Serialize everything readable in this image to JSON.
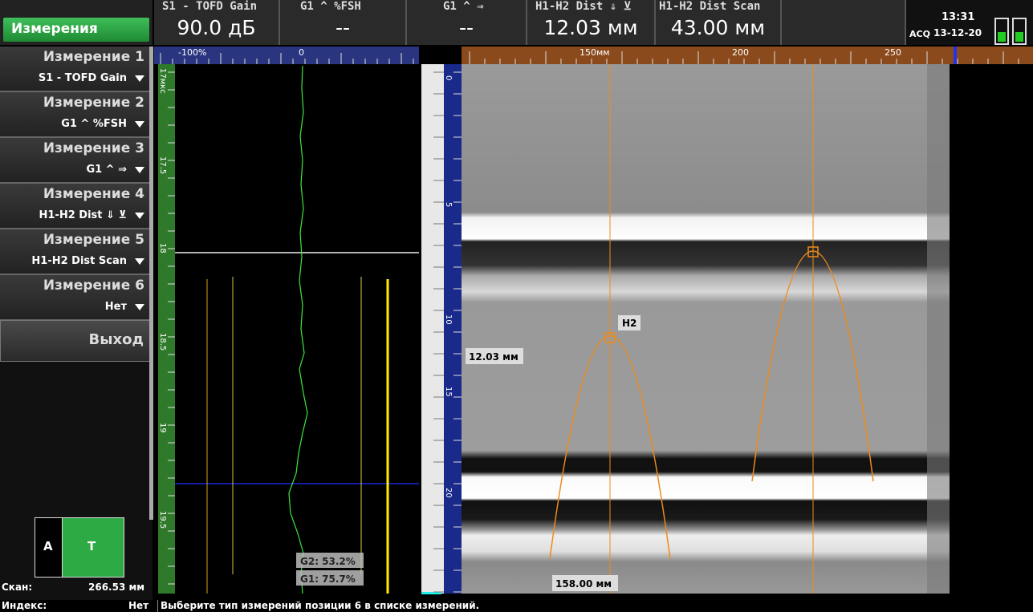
{
  "header": {
    "menu_button": "Измерения",
    "fields": [
      {
        "label": "S1 - TOFD Gain",
        "value": "90.0 дБ"
      },
      {
        "label": "G1 ^ %FSH",
        "value": "--"
      },
      {
        "label": "G1 ^ ⇒",
        "value": "--"
      },
      {
        "label": "H1-H2 Dist ⇓ ⊻",
        "value": "12.03 мм"
      },
      {
        "label": "H1-H2 Dist Scan",
        "value": "43.00 мм"
      }
    ],
    "acq": "ACQ",
    "time": "13:31",
    "date": "13-12-20"
  },
  "menu": {
    "items": [
      {
        "title": "Измерение 1",
        "selection": "S1 - TOFD Gain"
      },
      {
        "title": "Измерение 2",
        "selection": "G1 ^ %FSH"
      },
      {
        "title": "Измерение 3",
        "selection": "G1 ^ ⇒"
      },
      {
        "title": "Измерение 4",
        "selection": "H1-H2 Dist ⇓ ⊻"
      },
      {
        "title": "Измерение 5",
        "selection": "H1-H2 Dist Scan"
      },
      {
        "title": "Измерение 6",
        "selection": "Нет"
      }
    ],
    "exit": "Выход"
  },
  "probe": {
    "a": "A",
    "t": "T"
  },
  "scan": {
    "label": "Скан:",
    "value": "266.53 мм"
  },
  "status": {
    "index_label": "Индекс:",
    "index_value": "Нет",
    "message": "Выберите тип измерений позиции 6 в списке измерений."
  },
  "a_scan": {
    "top_ruler": [
      "-100%",
      "0"
    ],
    "left_ruler": [
      "17мкс",
      "17.5",
      "18",
      "18.5",
      "19",
      "19.5"
    ],
    "gates": [
      "G2: 53.2%",
      "G1: 75.7%"
    ]
  },
  "b_scan": {
    "top_ruler": [
      "150мм",
      "200",
      "250"
    ],
    "left_ruler": [
      "0",
      "5",
      "10",
      "15",
      "20"
    ],
    "labels": {
      "h2": "H2",
      "depth": "12.03 мм",
      "position": "158.00 мм"
    }
  }
}
